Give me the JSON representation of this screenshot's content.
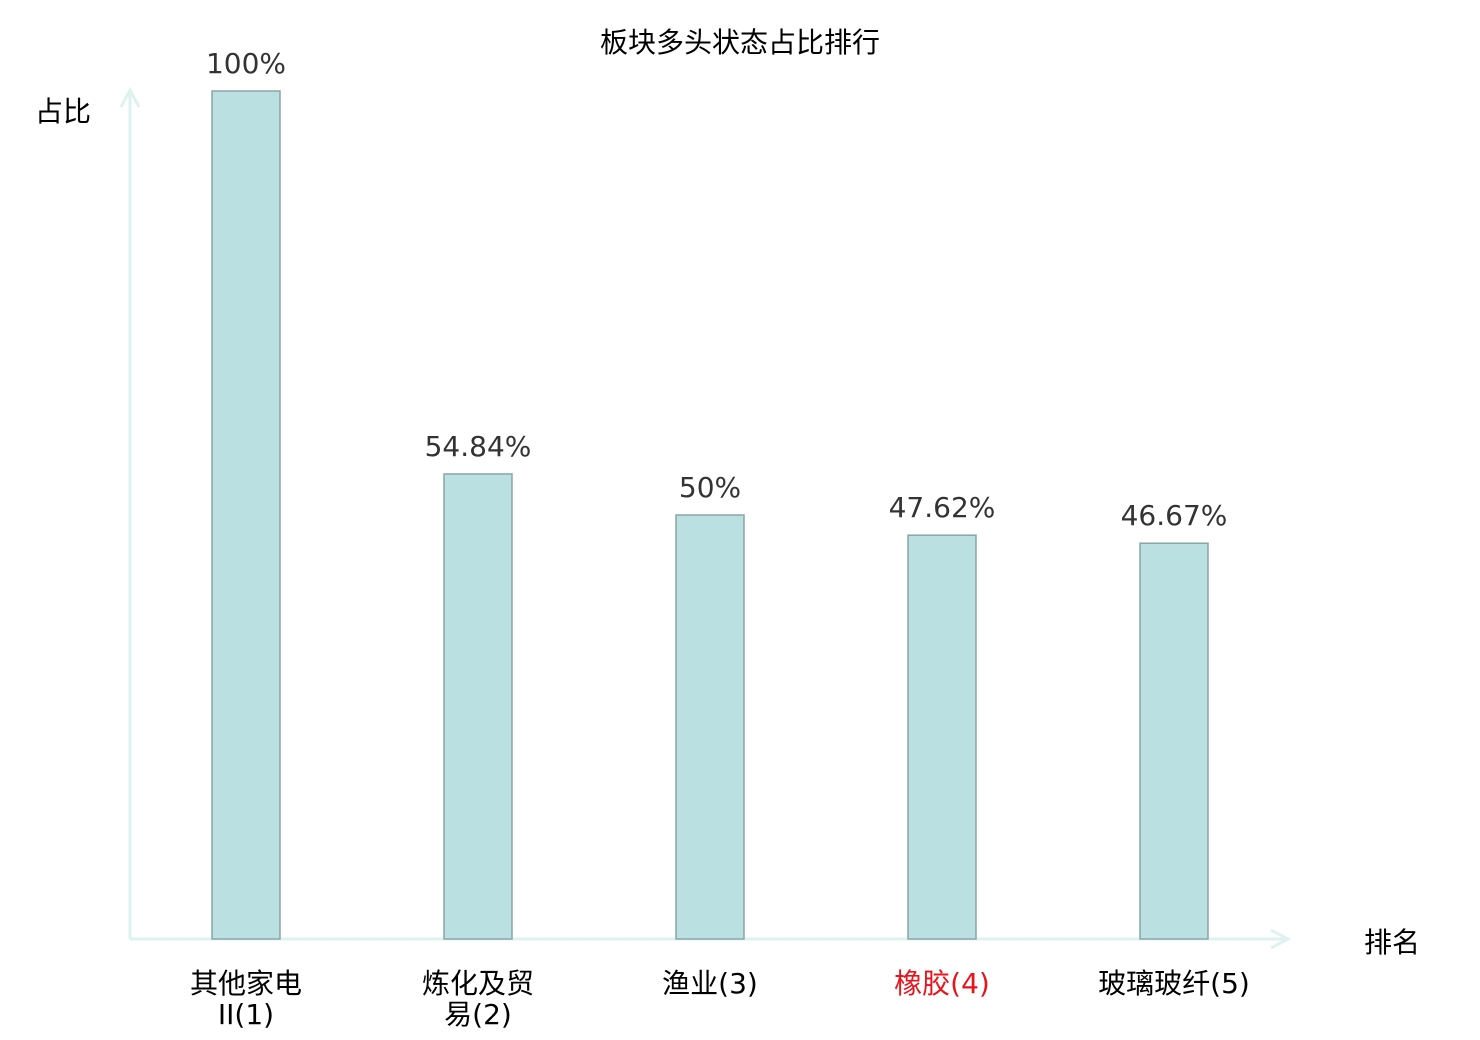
{
  "chart_data": {
    "type": "bar",
    "title": "板块多头状态占比排行",
    "ylabel": "占比",
    "xlabel": "排名",
    "categories": [
      "其他家电II(1)",
      "炼化及贸易(2)",
      "渔业(3)",
      "橡胶(4)",
      "玻璃玻纤(5)"
    ],
    "values": [
      100,
      54.84,
      50,
      47.62,
      46.67
    ],
    "data_labels": [
      "100%",
      "54.84%",
      "50%",
      "47.62%",
      "46.67%"
    ],
    "highlight_index": 3,
    "ylim": [
      0,
      100
    ],
    "grid": false,
    "colors": {
      "bar_fill": "#bbe0e2",
      "bar_stroke": "#8aa5a6",
      "axis": "#dff2f0",
      "label": "#000000",
      "highlight_label": "#e8141b",
      "value_label": "#333333"
    }
  }
}
